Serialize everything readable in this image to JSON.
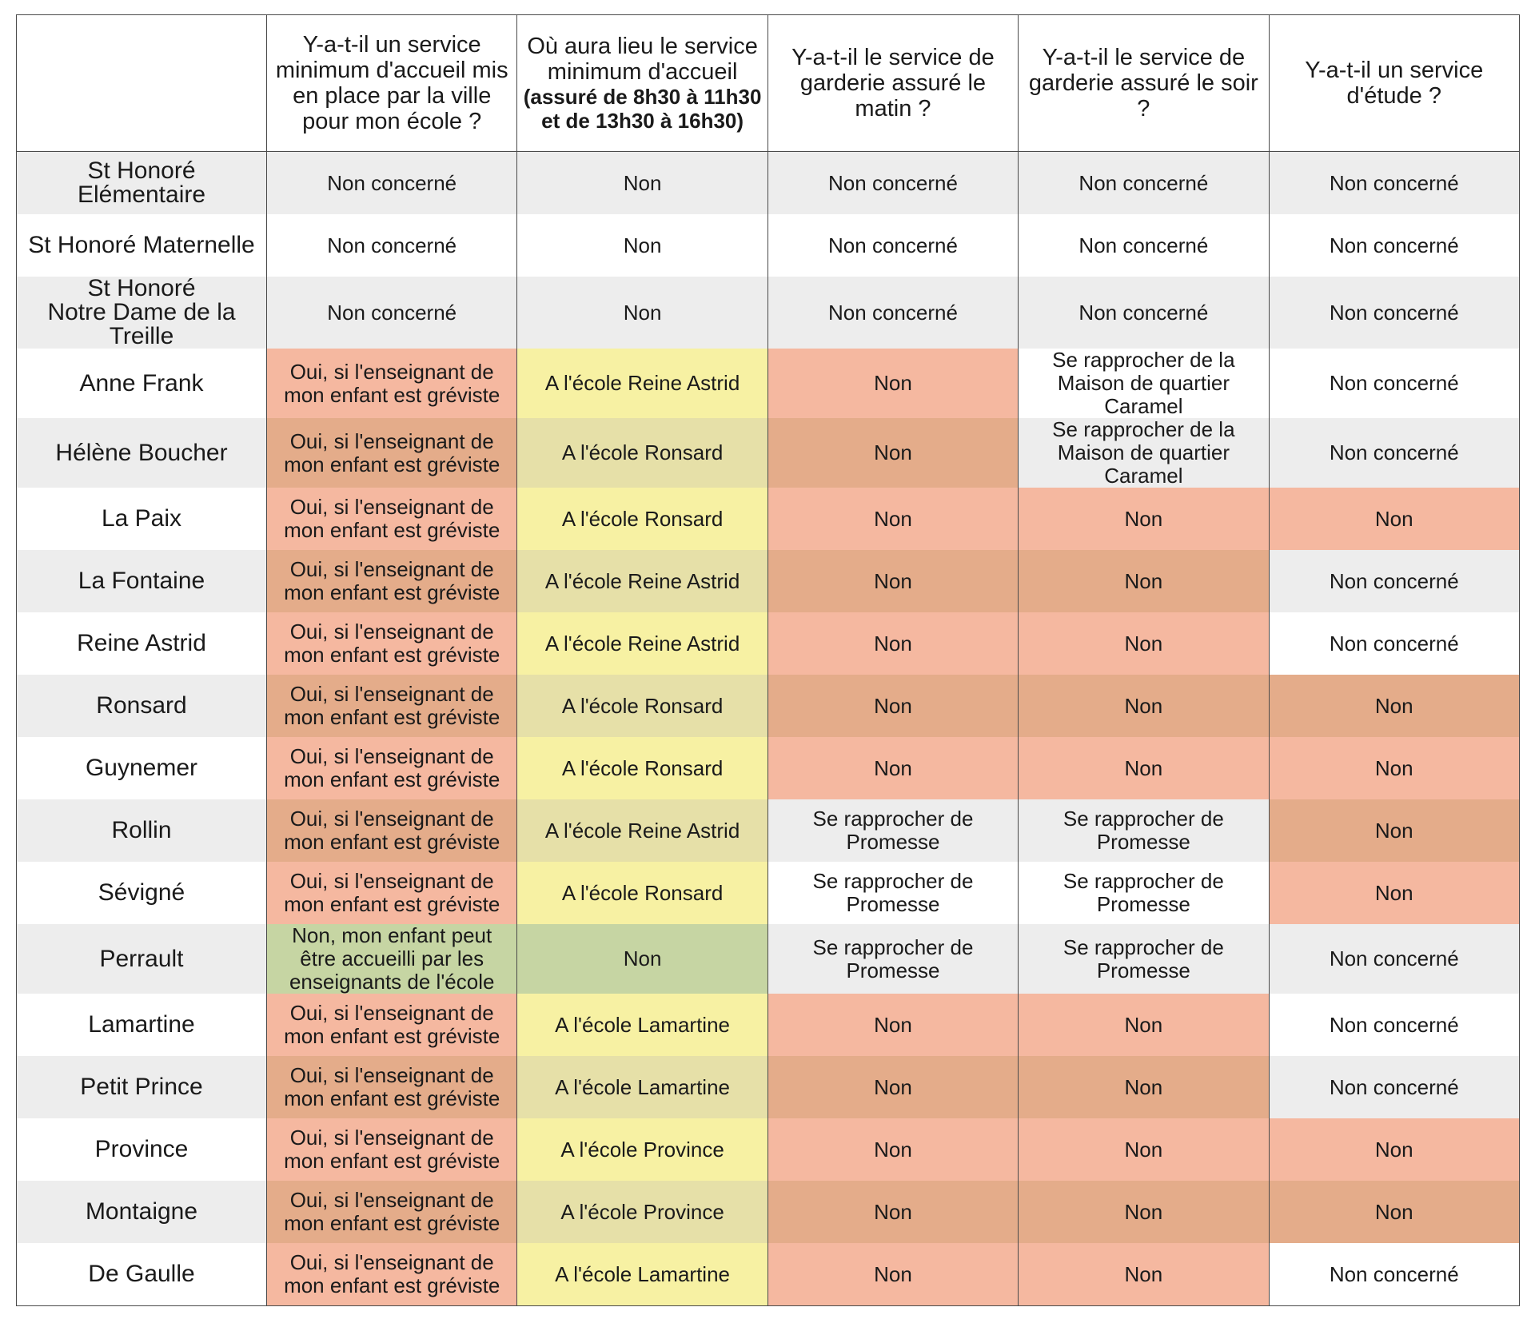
{
  "colors": {
    "grey": "#ededed",
    "white": "#ffffff",
    "salmon": "#f5b8a0",
    "salmon_dark": "#e4ac8a",
    "yellow": "#f7f1a3",
    "yellow_dark": "#e6e0a8",
    "green": "#c6d5a3"
  },
  "headers": [
    {
      "text": "",
      "sub": ""
    },
    {
      "text": "Y-a-t-il un service minimum d'accueil mis en place par la ville pour mon école ?",
      "sub": ""
    },
    {
      "text": "Où aura lieu le service minimum d'accueil",
      "sub": "(assuré de 8h30 à 11h30 et de 13h30 à 16h30)"
    },
    {
      "text": "Y-a-t-il le service de garderie assuré le matin ?",
      "sub": ""
    },
    {
      "text": "Y-a-t-il le service de garderie assuré le soir ?",
      "sub": ""
    },
    {
      "text": "Y-a-t-il un service d'étude ?",
      "sub": ""
    }
  ],
  "rows": [
    {
      "school": "St Honoré Elémentaire",
      "cells": [
        "Non concerné",
        "Non",
        "Non concerné",
        "Non concerné",
        "Non concerné"
      ],
      "tones": [
        "grey",
        "grey",
        "grey",
        "grey",
        "grey"
      ]
    },
    {
      "school": "St Honoré Maternelle",
      "cells": [
        "Non concerné",
        "Non",
        "Non concerné",
        "Non concerné",
        "Non concerné"
      ],
      "tones": [
        "white",
        "white",
        "white",
        "white",
        "white"
      ]
    },
    {
      "school": "St Honoré\nNotre Dame de la Treille",
      "cells": [
        "Non concerné",
        "Non",
        "Non concerné",
        "Non concerné",
        "Non concerné"
      ],
      "tones": [
        "grey",
        "grey",
        "grey",
        "grey",
        "grey"
      ]
    },
    {
      "school": "Anne Frank",
      "cells": [
        "Oui, si l'enseignant de mon enfant est gréviste",
        "A l'école Reine Astrid",
        "Non",
        "Se rapprocher de la Maison de quartier Caramel",
        "Non concerné"
      ],
      "tones": [
        "salmon",
        "yellow",
        "salmon",
        "white",
        "white"
      ]
    },
    {
      "school": "Hélène Boucher",
      "cells": [
        "Oui, si l'enseignant de mon enfant est gréviste",
        "A l'école Ronsard",
        "Non",
        "Se rapprocher de la Maison de quartier Caramel",
        "Non concerné"
      ],
      "tones": [
        "salmon-dark",
        "yellow-dark",
        "salmon-dark",
        "grey",
        "grey"
      ]
    },
    {
      "school": "La Paix",
      "cells": [
        "Oui, si l'enseignant de mon enfant est gréviste",
        "A l'école Ronsard",
        "Non",
        "Non",
        "Non"
      ],
      "tones": [
        "salmon",
        "yellow",
        "salmon",
        "salmon",
        "salmon"
      ]
    },
    {
      "school": "La Fontaine",
      "cells": [
        "Oui, si l'enseignant de mon enfant est gréviste",
        "A l'école Reine Astrid",
        "Non",
        "Non",
        "Non concerné"
      ],
      "tones": [
        "salmon-dark",
        "yellow-dark",
        "salmon-dark",
        "salmon-dark",
        "grey"
      ]
    },
    {
      "school": "Reine Astrid",
      "cells": [
        "Oui, si l'enseignant de mon enfant est gréviste",
        "A l'école Reine Astrid",
        "Non",
        "Non",
        "Non concerné"
      ],
      "tones": [
        "salmon",
        "yellow",
        "salmon",
        "salmon",
        "white"
      ]
    },
    {
      "school": "Ronsard",
      "cells": [
        "Oui, si l'enseignant de mon enfant est gréviste",
        "A l'école Ronsard",
        "Non",
        "Non",
        "Non"
      ],
      "tones": [
        "salmon-dark",
        "yellow-dark",
        "salmon-dark",
        "salmon-dark",
        "salmon-dark"
      ]
    },
    {
      "school": "Guynemer",
      "cells": [
        "Oui, si l'enseignant de mon enfant est gréviste",
        "A l'école Ronsard",
        "Non",
        "Non",
        "Non"
      ],
      "tones": [
        "salmon",
        "yellow",
        "salmon",
        "salmon",
        "salmon"
      ]
    },
    {
      "school": "Rollin",
      "cells": [
        "Oui, si l'enseignant de mon enfant est gréviste",
        "A l'école Reine Astrid",
        "Se rapprocher de Promesse",
        "Se rapprocher de Promesse",
        "Non"
      ],
      "tones": [
        "salmon-dark",
        "yellow-dark",
        "grey",
        "grey",
        "salmon-dark"
      ]
    },
    {
      "school": "Sévigné",
      "cells": [
        "Oui, si l'enseignant de mon enfant est gréviste",
        "A l'école Ronsard",
        "Se rapprocher de Promesse",
        "Se rapprocher de Promesse",
        "Non"
      ],
      "tones": [
        "salmon",
        "yellow",
        "white",
        "white",
        "salmon"
      ]
    },
    {
      "school": "Perrault",
      "cells": [
        "Non, mon enfant peut être accueilli par les enseignants de l'école",
        "Non",
        "Se rapprocher de Promesse",
        "Se rapprocher de Promesse",
        "Non concerné"
      ],
      "tones": [
        "green",
        "green",
        "grey",
        "grey",
        "grey"
      ]
    },
    {
      "school": "Lamartine",
      "cells": [
        "Oui, si l'enseignant de mon enfant est gréviste",
        "A l'école Lamartine",
        "Non",
        "Non",
        "Non concerné"
      ],
      "tones": [
        "salmon",
        "yellow",
        "salmon",
        "salmon",
        "white"
      ]
    },
    {
      "school": "Petit Prince",
      "cells": [
        "Oui, si l'enseignant de mon enfant est gréviste",
        "A l'école Lamartine",
        "Non",
        "Non",
        "Non concerné"
      ],
      "tones": [
        "salmon-dark",
        "yellow-dark",
        "salmon-dark",
        "salmon-dark",
        "grey"
      ]
    },
    {
      "school": "Province",
      "cells": [
        "Oui, si l'enseignant de mon enfant est gréviste",
        "A l'école Province",
        "Non",
        "Non",
        "Non"
      ],
      "tones": [
        "salmon",
        "yellow",
        "salmon",
        "salmon",
        "salmon"
      ]
    },
    {
      "school": "Montaigne",
      "cells": [
        "Oui, si l'enseignant de mon enfant est gréviste",
        "A l'école Province",
        "Non",
        "Non",
        "Non"
      ],
      "tones": [
        "salmon-dark",
        "yellow-dark",
        "salmon-dark",
        "salmon-dark",
        "salmon-dark"
      ]
    },
    {
      "school": "De Gaulle",
      "cells": [
        "Oui, si l'enseignant de mon enfant est gréviste",
        "A l'école Lamartine",
        "Non",
        "Non",
        "Non concerné"
      ],
      "tones": [
        "salmon",
        "yellow",
        "salmon",
        "salmon",
        "white"
      ]
    }
  ]
}
